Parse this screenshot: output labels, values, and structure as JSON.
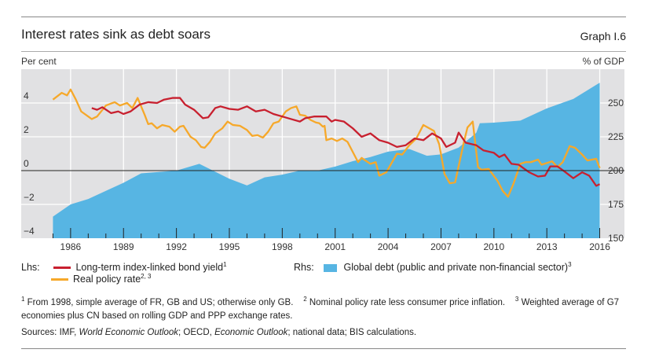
{
  "header": {
    "title": "Interest rates sink as debt soars",
    "graph_number": "Graph I.6"
  },
  "chart_data": {
    "type": "line",
    "title": "Interest rates sink as debt soars",
    "ylabel_left": "Per cent",
    "ylabel_right": "% of GDP",
    "xlim": [
      1983.2,
      2017.4
    ],
    "ylim_left": [
      -4,
      6
    ],
    "ylim_right": [
      150,
      275
    ],
    "x_ticks": [
      "1986",
      "1989",
      "1992",
      "1995",
      "1998",
      "2001",
      "2004",
      "2007",
      "2010",
      "2013",
      "2016"
    ],
    "y_ticks_left": [
      "4",
      "2",
      "0",
      "−2",
      "−4"
    ],
    "y_ticks_right": [
      "250",
      "225",
      "200",
      "175",
      "150"
    ],
    "grid": true,
    "colors": {
      "bond_yield": "#c8202f",
      "policy_rate": "#f6a82a",
      "debt": "#57b5e3",
      "background": "#e1e1e3"
    },
    "series": [
      {
        "name": "Long-term index-linked bond yield",
        "axis": "left",
        "type": "line",
        "x": [
          1987.2,
          1987.5,
          1987.8,
          1988.3,
          1988.7,
          1989.0,
          1989.4,
          1989.9,
          1990.4,
          1990.9,
          1991.3,
          1991.8,
          1992.2,
          1992.5,
          1993.0,
          1993.5,
          1993.8,
          1994.2,
          1994.5,
          1995.0,
          1995.5,
          1996.0,
          1996.5,
          1997.0,
          1997.5,
          1998.0,
          1998.5,
          1999.0,
          1999.3,
          1999.8,
          2000.5,
          2000.8,
          2001.0,
          2001.5,
          2002.0,
          2002.5,
          2003.0,
          2003.5,
          2004.0,
          2004.5,
          2005.0,
          2005.5,
          2006.0,
          2006.5,
          2007.0,
          2007.3,
          2007.8,
          2008.0,
          2008.4,
          2009.0,
          2009.4,
          2010.0,
          2010.3,
          2010.6,
          2011.0,
          2011.4,
          2012.0,
          2012.5,
          2012.9,
          2013.2,
          2013.6,
          2014.0,
          2014.5,
          2015.0,
          2015.4,
          2015.8,
          2016.0
        ],
        "values": [
          3.7,
          3.6,
          3.75,
          3.4,
          3.5,
          3.35,
          3.5,
          3.9,
          4.05,
          4.0,
          4.2,
          4.3,
          4.3,
          3.9,
          3.6,
          3.1,
          3.15,
          3.7,
          3.8,
          3.65,
          3.6,
          3.8,
          3.5,
          3.6,
          3.35,
          3.2,
          3.05,
          2.9,
          3.1,
          3.2,
          3.2,
          2.9,
          3.0,
          2.9,
          2.5,
          2.0,
          2.2,
          1.8,
          1.65,
          1.4,
          1.5,
          1.9,
          1.8,
          2.2,
          1.9,
          1.4,
          1.65,
          2.25,
          1.65,
          1.5,
          1.2,
          1.05,
          0.8,
          0.95,
          0.4,
          0.35,
          -0.1,
          -0.35,
          -0.3,
          0.25,
          0.25,
          -0.05,
          -0.45,
          -0.1,
          -0.3,
          -0.9,
          -0.8
        ]
      },
      {
        "name": "Real policy rate",
        "axis": "left",
        "type": "line",
        "x": [
          1985.0,
          1985.5,
          1985.8,
          1986.0,
          1986.3,
          1986.6,
          1987.0,
          1987.2,
          1987.5,
          1988.0,
          1988.5,
          1988.8,
          1989.2,
          1989.5,
          1989.8,
          1990.2,
          1990.4,
          1990.6,
          1990.9,
          1991.2,
          1991.6,
          1991.9,
          1992.2,
          1992.4,
          1992.8,
          1993.1,
          1993.4,
          1993.6,
          1993.9,
          1994.2,
          1994.6,
          1994.9,
          1995.2,
          1995.6,
          1996.0,
          1996.3,
          1996.6,
          1996.9,
          1997.2,
          1997.5,
          1997.8,
          1998.2,
          1998.5,
          1998.8,
          1999.0,
          1999.3,
          1999.6,
          1999.9,
          2000.1,
          2000.3,
          2000.4,
          2000.5,
          2000.8,
          2001.1,
          2001.4,
          2001.7,
          2002.3,
          2002.5,
          2003.0,
          2003.3,
          2003.5,
          2003.9,
          2004.5,
          2004.8,
          2005.2,
          2005.6,
          2006.0,
          2006.6,
          2006.9,
          2007.2,
          2007.5,
          2007.8,
          2008.3,
          2008.5,
          2008.8,
          2009.1,
          2009.3,
          2009.7,
          2010.2,
          2010.5,
          2010.8,
          2011.1,
          2011.5,
          2011.8,
          2012.1,
          2012.5,
          2012.7,
          2013.3,
          2013.6,
          2013.9,
          2014.3,
          2014.6,
          2015.0,
          2015.3,
          2015.8,
          2016.0
        ],
        "values": [
          4.2,
          4.6,
          4.45,
          4.8,
          4.2,
          3.5,
          3.2,
          3.05,
          3.2,
          3.85,
          4.05,
          3.85,
          4.0,
          3.7,
          4.3,
          3.3,
          2.75,
          2.8,
          2.5,
          2.7,
          2.6,
          2.3,
          2.6,
          2.65,
          2.0,
          1.8,
          1.4,
          1.35,
          1.7,
          2.2,
          2.5,
          2.9,
          2.7,
          2.65,
          2.4,
          2.05,
          2.1,
          1.95,
          2.3,
          2.8,
          2.9,
          3.5,
          3.7,
          3.8,
          3.3,
          3.25,
          3.0,
          2.85,
          2.8,
          2.6,
          2.65,
          1.8,
          1.9,
          1.75,
          1.9,
          1.7,
          0.5,
          0.75,
          0.4,
          0.5,
          -0.3,
          -0.1,
          1.0,
          0.95,
          1.5,
          1.9,
          2.7,
          2.35,
          1.55,
          -0.2,
          -0.75,
          -0.7,
          1.7,
          2.55,
          2.9,
          0.2,
          0.05,
          0.1,
          -0.6,
          -1.2,
          -1.55,
          -0.8,
          0.4,
          0.5,
          0.5,
          0.65,
          0.35,
          0.55,
          0.2,
          0.5,
          1.45,
          1.35,
          0.95,
          0.6,
          0.7,
          0.15
        ]
      },
      {
        "name": "Global debt (public and private non-financial sector)",
        "axis": "right",
        "type": "area",
        "x": [
          1985,
          1986,
          1987,
          1988,
          1989,
          1990,
          1991,
          1992,
          1993.3,
          1995,
          1996,
          1997,
          1998,
          1999,
          2000,
          2001,
          2002,
          2003,
          2004,
          2005.2,
          2006.2,
          2007,
          2008,
          2009.0,
          2009.2,
          2010,
          2011.5,
          2012.5,
          2013,
          2014.5,
          2016
        ],
        "values": [
          166,
          175,
          179,
          185,
          191,
          198,
          199,
          200,
          205,
          194,
          189,
          195,
          197,
          200,
          200,
          203,
          207,
          210,
          214,
          216,
          211,
          212,
          217,
          228,
          235,
          235.5,
          237,
          243,
          246,
          253,
          265
        ]
      }
    ]
  },
  "legend": {
    "lhs_label": "Lhs:",
    "rhs_label": "Rhs:",
    "items": [
      {
        "label": "Long-term index-linked bond yield",
        "sup": "1"
      },
      {
        "label": "Real policy rate",
        "sup": "2, 3"
      },
      {
        "label": "Global debt (public and private non-financial sector)",
        "sup": "3"
      }
    ]
  },
  "footnotes": [
    {
      "mark": "1",
      "text": "From 1998, simple average of FR, GB and US; otherwise only GB."
    },
    {
      "mark": "2",
      "text": "Nominal policy rate less consumer price inflation."
    },
    {
      "mark": "3",
      "text": "Weighted average of G7 economies plus CN based on rolling GDP and PPP exchange rates."
    }
  ],
  "sources": {
    "prefix": "Sources: IMF, ",
    "weo": "World Economic Outlook",
    "mid": "; OECD, ",
    "eo": "Economic Outlook",
    "suffix": "; national data; BIS calculations."
  }
}
